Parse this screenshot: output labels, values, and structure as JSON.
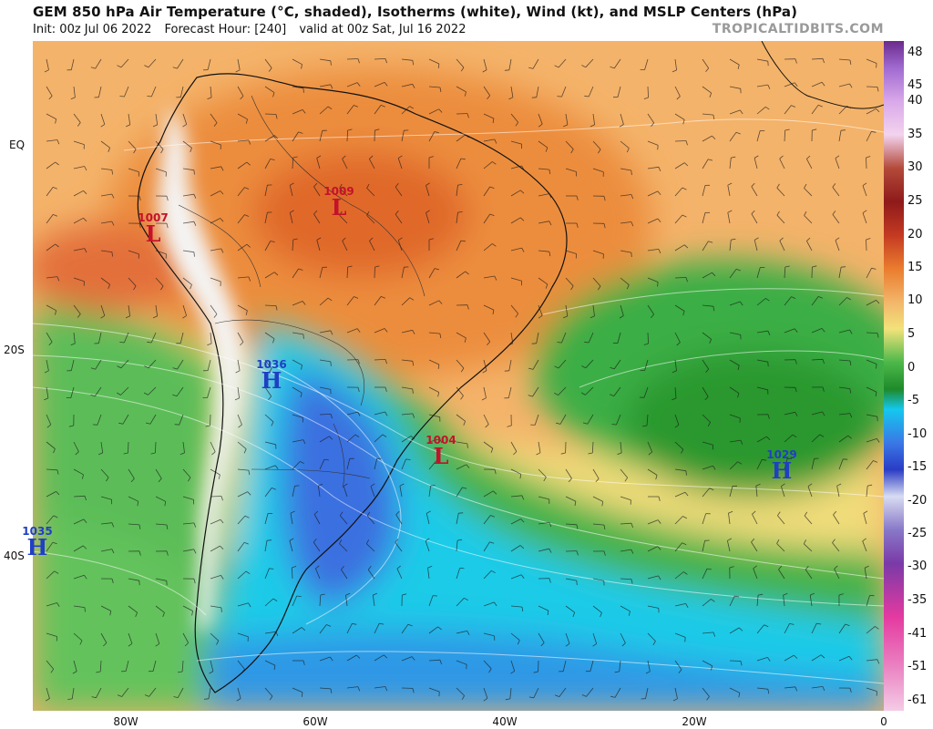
{
  "header": {
    "title": "GEM 850 hPa Air Temperature (°C, shaded), Isotherms (white), Wind (kt), and MSLP Centers (hPa)",
    "init": "Init: 00z Jul 06 2022",
    "forecast_hour": "Forecast Hour: [240]",
    "valid": "valid at 00z Sat, Jul 16 2022",
    "brand": "TROPICALTIDBITS.COM"
  },
  "lat_labels": [
    "EQ",
    "20S",
    "40S"
  ],
  "lon_labels": [
    "80W",
    "60W",
    "40W",
    "20W",
    "0"
  ],
  "colorbar": {
    "labels": [
      "48",
      "45",
      "40",
      "35",
      "30",
      "25",
      "20",
      "15",
      "10",
      "5",
      "0",
      "-5",
      "-10",
      "-15",
      "-20",
      "-25",
      "-30",
      "-35",
      "-41",
      "-51",
      "-61"
    ],
    "colors": [
      "#6b2a8c",
      "#a06ad0",
      "#d9a8ea",
      "#f3d3ee",
      "#b34a3a",
      "#8e1a1a",
      "#c43a22",
      "#ea7c2e",
      "#f2b66a",
      "#f2e27a",
      "#4cb84a",
      "#1e8a2a",
      "#14c8ee",
      "#3a78e6",
      "#2a3cc4",
      "#d8dcf2",
      "#8878c8",
      "#7a3aa8",
      "#e43aa0",
      "#ea7ec0",
      "#f4cce6"
    ]
  },
  "pressure_centers": [
    {
      "type": "low",
      "letter": "L",
      "value": "1007"
    },
    {
      "type": "low",
      "letter": "L",
      "value": "1009"
    },
    {
      "type": "high",
      "letter": "H",
      "value": "1036"
    },
    {
      "type": "low",
      "letter": "L",
      "value": "1004"
    },
    {
      "type": "high",
      "letter": "H",
      "value": "1029"
    },
    {
      "type": "high",
      "letter": "H",
      "value": "1035"
    }
  ]
}
